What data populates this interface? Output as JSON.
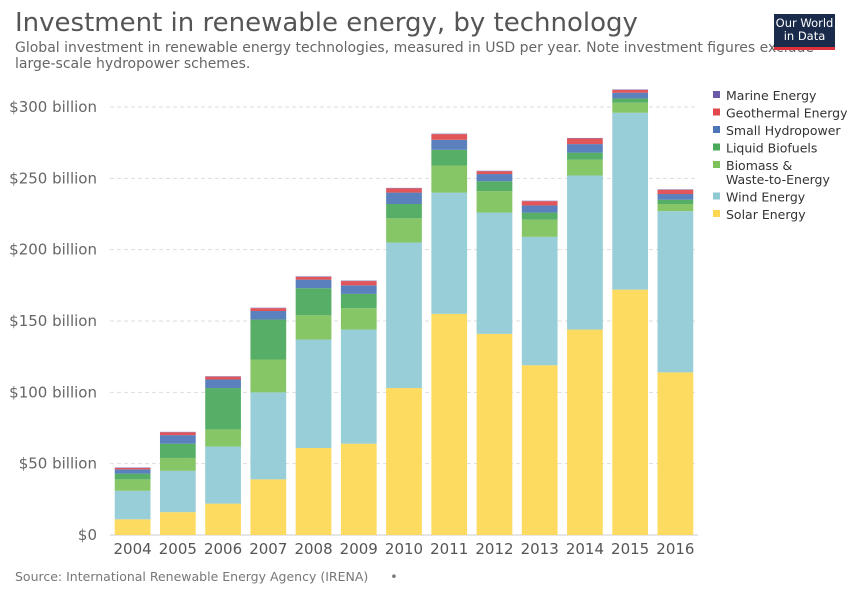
{
  "header": {
    "title": "Investment in renewable energy, by technology",
    "subtitle": "Global investment in renewable energy technologies, measured in USD per year. Note investment figures exclude large-scale hydropower schemes."
  },
  "logo": {
    "line1": "Our World",
    "line2": "in Data"
  },
  "footer": {
    "source": "Source: International Renewable Energy Agency (IRENA)",
    "dot": "•"
  },
  "chart_data": {
    "type": "bar",
    "stacked": true,
    "title": "Investment in renewable energy, by technology",
    "xlabel": "",
    "ylabel": "",
    "ylim": [
      0,
      300
    ],
    "y_ticks": [
      0,
      50,
      100,
      150,
      200,
      250,
      300
    ],
    "y_tick_labels": [
      "$0",
      "$50 billion",
      "$100 billion",
      "$150 billion",
      "$200 billion",
      "$250 billion",
      "$300 billion"
    ],
    "grid": true,
    "legend_position": "right",
    "categories": [
      "2004",
      "2005",
      "2006",
      "2007",
      "2008",
      "2009",
      "2010",
      "2011",
      "2012",
      "2013",
      "2014",
      "2015",
      "2016"
    ],
    "series": [
      {
        "name": "Solar Energy",
        "color": "#fdd752",
        "values": [
          11,
          16,
          22,
          39,
          61,
          64,
          103,
          155,
          141,
          119,
          144,
          172,
          114
        ]
      },
      {
        "name": "Wind Energy",
        "color": "#8fcad4",
        "values": [
          20,
          29,
          40,
          61,
          76,
          80,
          102,
          85,
          85,
          90,
          108,
          124,
          113
        ]
      },
      {
        "name": "Biomass & Waste-to-Energy",
        "color": "#7cc15a",
        "values": [
          8,
          9,
          12,
          23,
          17,
          15,
          17,
          19,
          15,
          12,
          11,
          7,
          5
        ]
      },
      {
        "name": "Liquid Biofuels",
        "color": "#49a85a",
        "values": [
          4,
          10,
          29,
          28,
          19,
          10,
          10,
          11,
          7,
          5,
          5,
          3,
          3
        ]
      },
      {
        "name": "Small Hydropower",
        "color": "#4c76b8",
        "values": [
          3,
          6,
          6,
          6,
          6,
          6,
          8,
          7,
          5,
          5,
          6,
          4,
          4
        ]
      },
      {
        "name": "Geothermal Energy",
        "color": "#e0484b",
        "values": [
          1,
          2,
          2,
          2,
          2,
          3,
          3,
          4,
          2,
          3,
          4,
          2,
          3
        ]
      },
      {
        "name": "Marine Energy",
        "color": "#6a5aa8",
        "values": [
          0.3,
          0.3,
          0.3,
          0.3,
          0.3,
          0.3,
          0.3,
          0.3,
          0.3,
          0.3,
          0.3,
          0.3,
          0.3
        ]
      }
    ]
  }
}
